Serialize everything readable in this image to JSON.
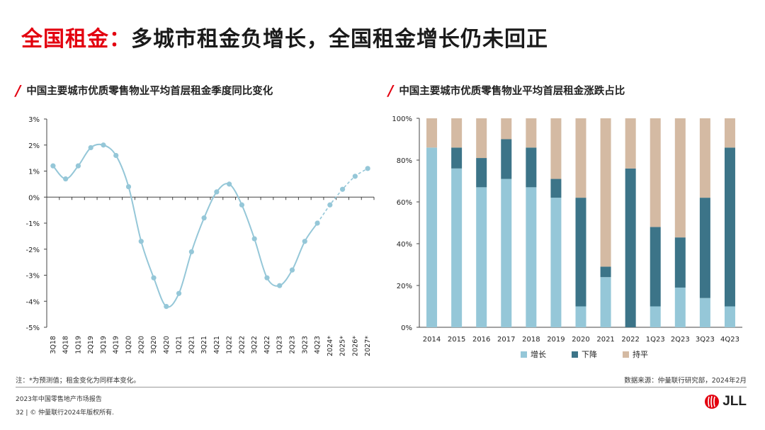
{
  "header": {
    "title_highlight": "全国租金：",
    "title_rest": "多城市租金负增长，全国租金增长仍未回正"
  },
  "left_chart_title": "中国主要城市优质零售物业平均首层租金季度同比变化",
  "right_chart_title": "中国主要城市优质零售物业平均首层租金涨跌占比",
  "legend": [
    {
      "label": "增长",
      "color": "#95c7d8"
    },
    {
      "label": "下降",
      "color": "#3c7488"
    },
    {
      "label": "持平",
      "color": "#d4baa3"
    }
  ],
  "note": "注：*为预测值；租金变化为同样本变化。",
  "source": "数据来源：仲量联行研究部，2024年2月",
  "footer": {
    "report": "2023年中国零售地产市场报告",
    "copyright": "32 | © 仲量联行2024年版权所有."
  },
  "logo_text": "JLL",
  "chart_data": [
    {
      "type": "line",
      "categories": [
        "3Q18",
        "4Q18",
        "1Q19",
        "2Q19",
        "3Q19",
        "4Q19",
        "1Q20",
        "2Q20",
        "3Q20",
        "4Q20",
        "1Q21",
        "2Q21",
        "3Q21",
        "4Q21",
        "1Q22",
        "2Q22",
        "3Q22",
        "4Q22",
        "1Q23",
        "2Q23",
        "3Q23",
        "4Q23",
        "2024*",
        "2025*",
        "2026*",
        "2027*"
      ],
      "values": [
        1.2,
        0.7,
        1.2,
        1.9,
        2.0,
        1.6,
        0.4,
        -1.7,
        -3.1,
        -4.2,
        -3.7,
        -2.1,
        -0.8,
        0.2,
        0.5,
        -0.3,
        -1.6,
        -3.1,
        -3.4,
        -2.8,
        -1.7,
        -1.0,
        -0.3,
        0.3,
        0.8,
        1.1
      ],
      "forecast_from_index": 21,
      "ylim": [
        -5,
        3
      ],
      "yticks": [
        "3%",
        "2%",
        "1%",
        "0%",
        "-1%",
        "-2%",
        "-3%",
        "-4%",
        "-5%"
      ],
      "color": "#95c7d8"
    },
    {
      "type": "bar",
      "stacked": true,
      "categories": [
        "2014",
        "2015",
        "2016",
        "2017",
        "2018",
        "2019",
        "2020",
        "2021",
        "2022",
        "1Q23",
        "2Q23",
        "3Q23",
        "4Q23"
      ],
      "series": [
        {
          "name": "增长",
          "values": [
            86,
            76,
            67,
            71,
            67,
            62,
            10,
            24,
            0,
            10,
            19,
            14,
            10
          ]
        },
        {
          "name": "下降",
          "values": [
            0,
            10,
            14,
            19,
            19,
            9,
            52,
            5,
            76,
            38,
            24,
            48,
            76
          ]
        },
        {
          "name": "持平",
          "values": [
            14,
            14,
            19,
            10,
            14,
            29,
            38,
            71,
            24,
            52,
            57,
            38,
            14
          ]
        }
      ],
      "ylim": [
        0,
        100
      ],
      "yticks": [
        "0%",
        "20%",
        "40%",
        "60%",
        "80%",
        "100%"
      ],
      "colors": [
        "#95c7d8",
        "#3c7488",
        "#d4baa3"
      ]
    }
  ]
}
